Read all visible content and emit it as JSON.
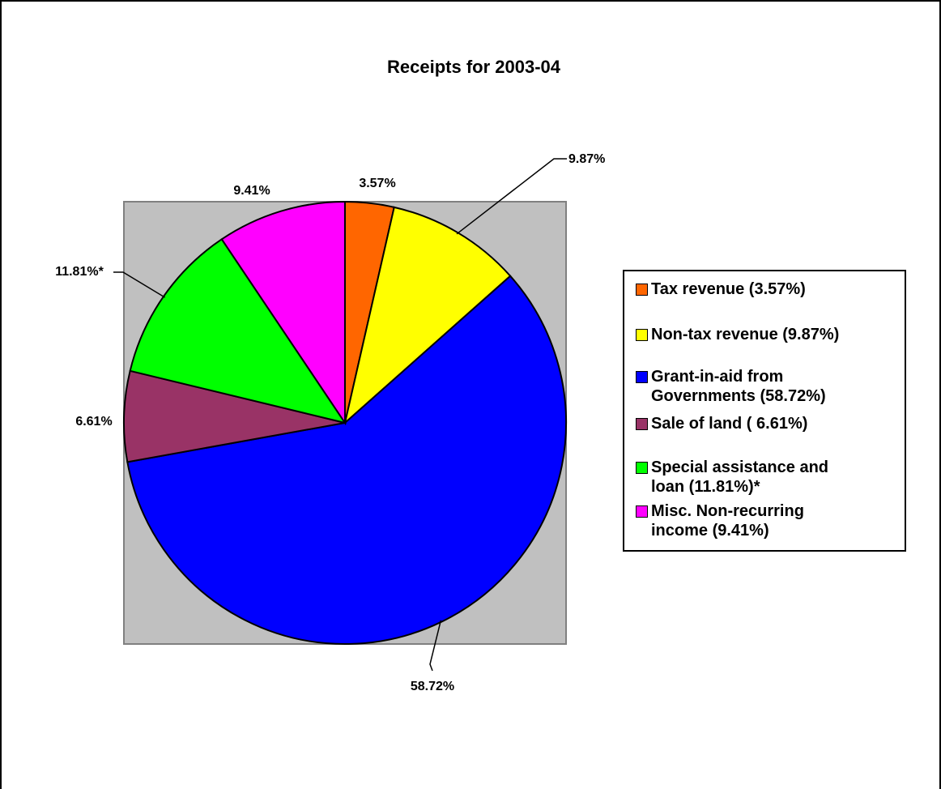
{
  "chart_data": {
    "type": "pie",
    "title": "Receipts for 2003-04",
    "slices": [
      {
        "name": "Tax revenue (3.57%)",
        "value": 3.57,
        "label": "3.57%",
        "color": "#FF6600"
      },
      {
        "name": "Non-tax revenue (9.87%)",
        "value": 9.87,
        "label": "9.87%",
        "color": "#FFFF00"
      },
      {
        "name": "Grant-in-aid from Governments (58.72%)",
        "value": 58.72,
        "label": "58.72%",
        "color": "#0000FF"
      },
      {
        "name": "Sale of land ( 6.61%)",
        "value": 6.61,
        "label": "6.61%",
        "color": "#993366"
      },
      {
        "name": "Special assistance  and loan (11.81%)*",
        "value": 11.81,
        "label": "11.81%*",
        "color": "#00FF00"
      },
      {
        "name": "Misc. Non-recurring income (9.41%)",
        "value": 9.41,
        "label": "9.41%",
        "color": "#FF00FF"
      }
    ],
    "legend_position": "right",
    "plot_background": "#C0C0C0"
  },
  "legend": {
    "items": [
      {
        "label": "Tax revenue (3.57%)",
        "color": "#FF6600"
      },
      {
        "label": "Non-tax revenue (9.87%)",
        "color": "#FFFF00"
      },
      {
        "label": "Grant-in-aid from\nGovernments (58.72%)",
        "color": "#0000FF"
      },
      {
        "label": "Sale of land ( 6.61%)",
        "color": "#993366"
      },
      {
        "label": "Special assistance  and\nloan (11.81%)*",
        "color": "#00FF00"
      },
      {
        "label": "Misc. Non-recurring\nincome (9.41%)",
        "color": "#FF00FF"
      }
    ]
  }
}
